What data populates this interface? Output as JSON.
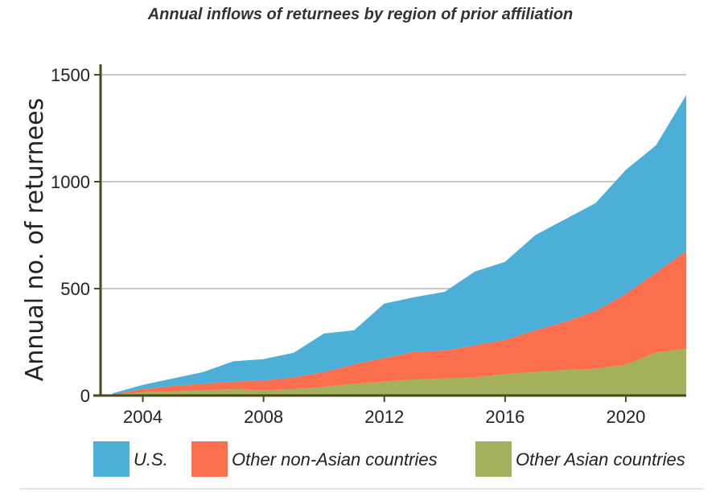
{
  "chart_data": {
    "type": "area",
    "stacked": true,
    "title": "Annual inflows of returnees by region of prior affiliation",
    "ylabel": "Annual no. of returnees",
    "xlabel": "",
    "xlim": [
      2002.6,
      2022
    ],
    "ylim": [
      0,
      1500
    ],
    "x_ticks": [
      2004,
      2008,
      2012,
      2016,
      2020
    ],
    "y_ticks": [
      0,
      500,
      1000,
      1500
    ],
    "grid": true,
    "legend_position": "bottom",
    "x": [
      2003,
      2004,
      2005,
      2006,
      2007,
      2008,
      2009,
      2010,
      2011,
      2012,
      2013,
      2014,
      2015,
      2016,
      2017,
      2018,
      2019,
      2020,
      2021,
      2022
    ],
    "series": [
      {
        "name": "Other Asian countries",
        "color": "#a3b05c",
        "values": [
          2,
          15,
          20,
          25,
          30,
          25,
          30,
          40,
          55,
          65,
          75,
          80,
          85,
          100,
          110,
          120,
          125,
          145,
          200,
          220
        ]
      },
      {
        "name": "Other non-Asian countries",
        "color": "#fb6e4e",
        "values": [
          3,
          15,
          25,
          30,
          35,
          45,
          55,
          70,
          90,
          110,
          130,
          130,
          150,
          160,
          195,
          225,
          270,
          330,
          375,
          455
        ]
      },
      {
        "name": "U.S.",
        "color": "#4bafd7",
        "values": [
          5,
          20,
          35,
          55,
          95,
          100,
          115,
          180,
          160,
          255,
          255,
          275,
          345,
          365,
          445,
          480,
          505,
          580,
          595,
          730
        ]
      }
    ],
    "legend": [
      {
        "label": "U.S.",
        "color": "#4bafd7"
      },
      {
        "label": "Other non-Asian countries",
        "color": "#fb6e4e"
      },
      {
        "label": "Other Asian countries",
        "color": "#a3b05c"
      }
    ]
  }
}
